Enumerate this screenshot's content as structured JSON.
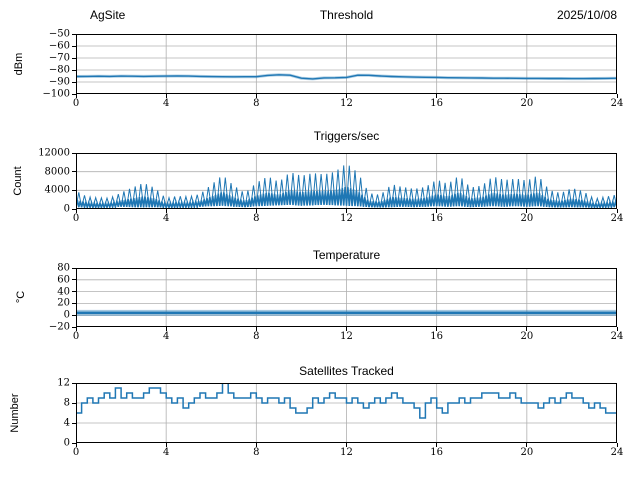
{
  "header": {
    "site_label": "AgSite",
    "date_label": "2025/10/08"
  },
  "style": {
    "line_color": "#1f77b4",
    "grid_color": "#b0b0b0",
    "axis_color": "#000000",
    "background": "#ffffff"
  },
  "chart_data": [
    {
      "type": "line",
      "title": "Threshold",
      "ylabel": "dBm",
      "ylim": [
        -100,
        -50
      ],
      "yticks": [
        -100,
        -90,
        -80,
        -70,
        -60,
        -50
      ],
      "xlim": [
        0,
        24
      ],
      "xticks": [
        0,
        4,
        8,
        12,
        16,
        20,
        24
      ],
      "render": "noisy-line",
      "x_start": 0,
      "x_step": 0.5,
      "y": [
        -85.4,
        -85.3,
        -85.2,
        -85.3,
        -85.1,
        -85.2,
        -85.3,
        -85.2,
        -85.1,
        -85.0,
        -85.1,
        -85.3,
        -85.5,
        -85.6,
        -85.7,
        -85.6,
        -85.6,
        -84.5,
        -84.0,
        -84.3,
        -86.8,
        -87.4,
        -86.6,
        -86.5,
        -86.2,
        -84.3,
        -84.4,
        -85.0,
        -85.4,
        -85.7,
        -85.9,
        -86.1,
        -86.2,
        -86.4,
        -86.5,
        -86.6,
        -86.7,
        -86.8,
        -86.8,
        -86.9,
        -87.0,
        -87.0,
        -87.1,
        -87.1,
        -87.2,
        -87.2,
        -87.1,
        -87.0,
        -86.8
      ]
    },
    {
      "type": "line",
      "title": "Triggers/sec",
      "ylabel": "Count",
      "ylim": [
        0,
        12000
      ],
      "yticks": [
        0,
        4000,
        8000,
        12000
      ],
      "xlim": [
        0,
        24
      ],
      "xticks": [
        0,
        4,
        8,
        12,
        16,
        20,
        24
      ],
      "render": "noise-band",
      "x_start": 0,
      "x_step": 0.5,
      "envelope_hi": [
        3900,
        2600,
        2400,
        2300,
        3500,
        4600,
        5600,
        4500,
        2300,
        2800,
        2600,
        3200,
        5200,
        7300,
        5000,
        3400,
        5600,
        7000,
        5800,
        7900,
        7100,
        7700,
        7400,
        8000,
        9800,
        7800,
        3400,
        3000,
        5300,
        4700,
        4300,
        4700,
        6300,
        5400,
        7200,
        4600,
        5000,
        7000,
        6200,
        6500,
        6100,
        7200,
        4000,
        3400,
        4500,
        3800,
        2200,
        2600,
        3100
      ],
      "envelope_lo": [
        400,
        350,
        300,
        400,
        500,
        400,
        350,
        400,
        300,
        350,
        400,
        500,
        600,
        700,
        500,
        400,
        600,
        700,
        800,
        900,
        700,
        800,
        900,
        800,
        700,
        600,
        400,
        350,
        400,
        500,
        400,
        500,
        600,
        500,
        600,
        400,
        500,
        600,
        500,
        600,
        500,
        600,
        400,
        350,
        400,
        350,
        300,
        350,
        400
      ]
    },
    {
      "type": "line",
      "title": "Temperature",
      "ylabel": "°C",
      "ylim": [
        -20,
        80
      ],
      "yticks": [
        -20,
        0,
        20,
        40,
        60,
        80
      ],
      "xlim": [
        0,
        24
      ],
      "xticks": [
        0,
        4,
        8,
        12,
        16,
        20,
        24
      ],
      "render": "band-line",
      "x": [
        0,
        24
      ],
      "y": [
        4,
        4
      ],
      "band": [
        1,
        7
      ]
    },
    {
      "type": "line",
      "title": "Satellites Tracked",
      "ylabel": "Number",
      "ylim": [
        0,
        12
      ],
      "yticks": [
        0,
        4,
        8,
        12
      ],
      "xlim": [
        0,
        24
      ],
      "xticks": [
        0,
        4,
        8,
        12,
        16,
        20,
        24
      ],
      "render": "step-line",
      "x_start": 0,
      "x_step": 0.25,
      "y": [
        6,
        8,
        9,
        8,
        9,
        10,
        9,
        11,
        9,
        10,
        9,
        9,
        10,
        11,
        11,
        10,
        9,
        8,
        9,
        7,
        8,
        9,
        10,
        9,
        9,
        10,
        12,
        10,
        9,
        9,
        9,
        10,
        9,
        8,
        9,
        9,
        8,
        9,
        7,
        6,
        6,
        7,
        9,
        8,
        9,
        10,
        9,
        9,
        8,
        9,
        8,
        7,
        8,
        9,
        8,
        9,
        10,
        9,
        8,
        8,
        7,
        5,
        8,
        9,
        7,
        6,
        8,
        8,
        9,
        8,
        9,
        9,
        10,
        10,
        10,
        9,
        9,
        10,
        9,
        8,
        8,
        8,
        7,
        8,
        9,
        8,
        9,
        10,
        9,
        9,
        8,
        7,
        8,
        7,
        6,
        6,
        5
      ]
    }
  ]
}
